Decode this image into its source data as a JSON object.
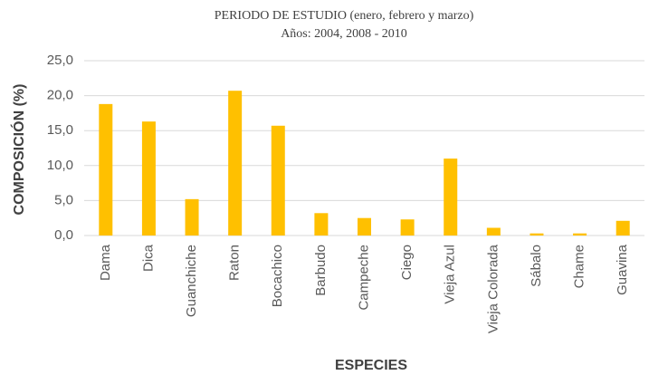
{
  "chart_data": {
    "type": "bar",
    "title": "PERIODO DE ESTUDIO (enero, febrero y marzo)",
    "subtitle": "Años: 2004, 2008 - 2010",
    "y_label": "COMPOSICIÓN (%)",
    "x_label": "ESPECIES",
    "categories": [
      "Dama",
      "Dica",
      "Guanchiche",
      "Raton",
      "Bocachico",
      "Barbudo",
      "Campeche",
      "Ciego",
      "Vieja Azul",
      "Vieja Colorada",
      "Sábalo",
      "Chame",
      "Guavina"
    ],
    "values": [
      18.8,
      16.3,
      5.2,
      20.7,
      15.7,
      3.2,
      2.5,
      2.3,
      11.0,
      1.1,
      0.3,
      0.3,
      2.1
    ],
    "color": "#FFC000",
    "ylim": [
      0,
      25
    ],
    "yticks": [
      {
        "value": 0,
        "label": "0,0"
      },
      {
        "value": 5,
        "label": "5,0"
      },
      {
        "value": 10,
        "label": "10,0"
      },
      {
        "value": 15,
        "label": "15,0"
      },
      {
        "value": 20,
        "label": "20,0"
      },
      {
        "value": 25,
        "label": "25,0"
      }
    ],
    "grid": true
  }
}
